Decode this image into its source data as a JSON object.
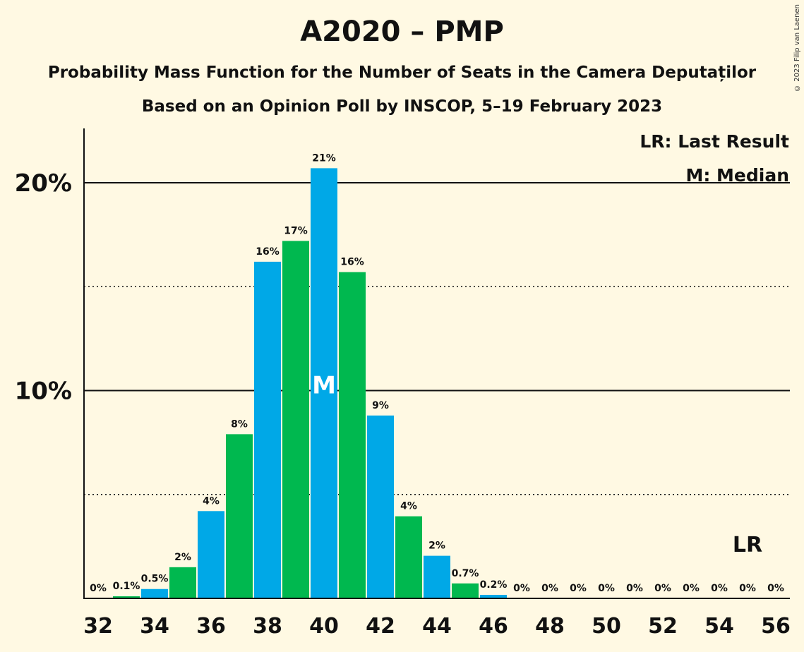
{
  "title": "A2020 – PMP",
  "subtitle": "Probability Mass Function for the Number of Seats in the Camera Deputaților",
  "subtitle2": "Based on an Opinion Poll by INSCOP, 5–19 February 2023",
  "copyright": "© 2023 Filip van Laenen",
  "legend": {
    "last_result": "LR: Last Result",
    "median": "M: Median"
  },
  "colors": {
    "blue": "#00a8e7",
    "green": "#00b84f",
    "background": "#fff9e3"
  },
  "chart_data": {
    "type": "bar",
    "title": "A2020 – PMP",
    "x": [
      32,
      33,
      34,
      35,
      36,
      37,
      38,
      39,
      40,
      41,
      42,
      43,
      44,
      45,
      46,
      47,
      48,
      49,
      50,
      51,
      52,
      53,
      54,
      55,
      56
    ],
    "values": [
      0,
      0.1,
      0.45,
      1.5,
      4.2,
      7.9,
      16.2,
      17.2,
      20.7,
      15.7,
      8.8,
      3.95,
      2.05,
      0.72,
      0.17,
      0,
      0,
      0,
      0,
      0,
      0,
      0,
      0,
      0,
      0
    ],
    "labels": [
      "0%",
      "0.1%",
      "0.5%",
      "2%",
      "4%",
      "8%",
      "16%",
      "17%",
      "21%",
      "16%",
      "9%",
      "4%",
      "2%",
      "0.7%",
      "0.2%",
      "0%",
      "0%",
      "0%",
      "0%",
      "0%",
      "0%",
      "0%",
      "0%",
      "0%",
      "0%"
    ],
    "x_ticks": [
      32,
      34,
      36,
      38,
      40,
      42,
      44,
      46,
      48,
      50,
      52,
      54,
      56
    ],
    "y_ticks": [
      10,
      20
    ],
    "y_tick_labels": [
      "10%",
      "20%"
    ],
    "y_minor_gridlines": [
      5,
      15
    ],
    "ylim": [
      0,
      22.5
    ],
    "median": 40,
    "median_label": "M",
    "last_result": 55,
    "last_result_label": "LR",
    "legend_placement": "top-right",
    "bar_color_pattern": [
      "blue",
      "green"
    ]
  }
}
